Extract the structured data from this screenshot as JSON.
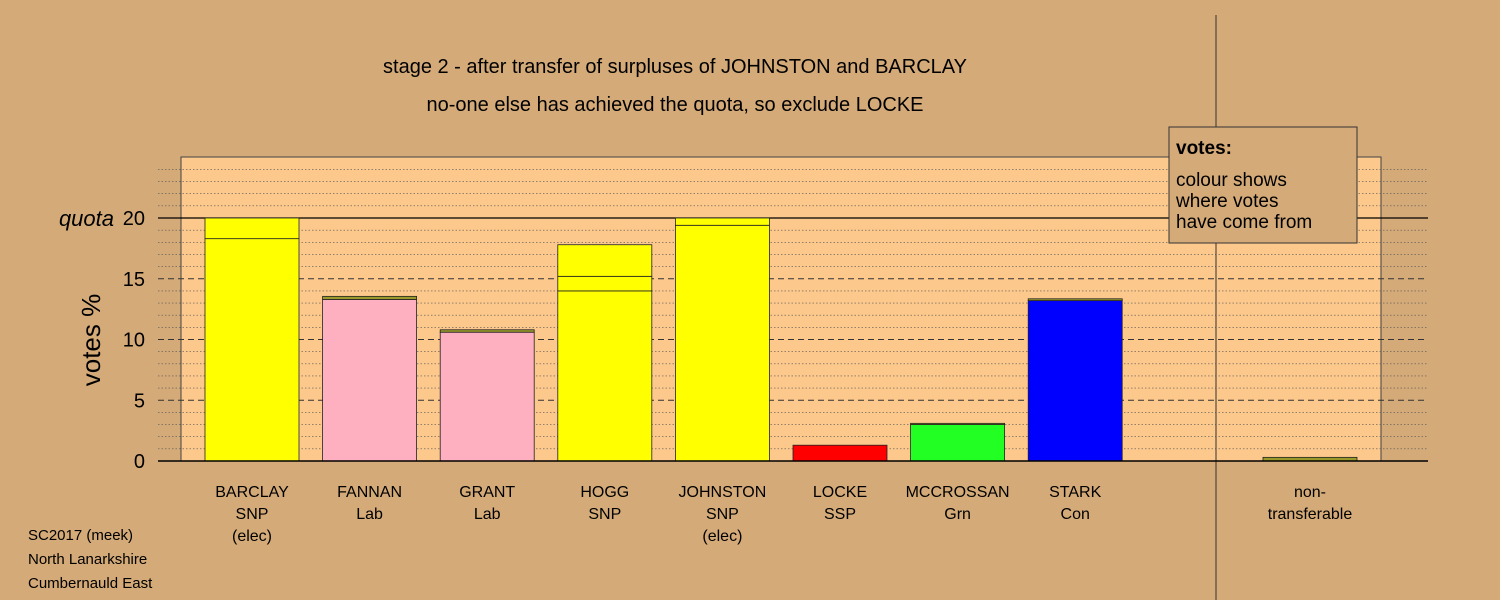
{
  "chart_data": {
    "type": "bar",
    "title_lines": [
      "stage 2 - after transfer of surpluses of JOHNSTON and BARCLAY",
      "no-one else has achieved the quota, so exclude LOCKE"
    ],
    "ylabel": "votes %",
    "ylim": [
      0,
      25
    ],
    "y_ticks": [
      0,
      5,
      10,
      15,
      20
    ],
    "quota": {
      "value": 20,
      "label": "quota"
    },
    "grid": "dotted minor every 1, dashed major every 5",
    "categories": [
      {
        "name": "BARCLAY",
        "party": "SNP",
        "note": "(elec)",
        "segments": [
          {
            "value": 18.3,
            "color": "#ffff00"
          },
          {
            "value": 1.7,
            "color": "#ffff00"
          }
        ]
      },
      {
        "name": "FANNAN",
        "party": "Lab",
        "note": "",
        "segments": [
          {
            "value": 13.3,
            "color": "#ffb0c0"
          },
          {
            "value": 0.25,
            "color": "#9a9a2a"
          }
        ]
      },
      {
        "name": "GRANT",
        "party": "Lab",
        "note": "",
        "segments": [
          {
            "value": 10.6,
            "color": "#ffb0c0"
          },
          {
            "value": 0.2,
            "color": "#9a9a2a"
          }
        ]
      },
      {
        "name": "HOGG",
        "party": "SNP",
        "note": "",
        "segments": [
          {
            "value": 14.0,
            "color": "#ffff00"
          },
          {
            "value": 1.2,
            "color": "#ffff00"
          },
          {
            "value": 2.6,
            "color": "#ffff00"
          }
        ]
      },
      {
        "name": "JOHNSTON",
        "party": "SNP",
        "note": "(elec)",
        "segments": [
          {
            "value": 19.4,
            "color": "#ffff00"
          },
          {
            "value": 0.6,
            "color": "#ffff00"
          }
        ]
      },
      {
        "name": "LOCKE",
        "party": "SSP",
        "note": "",
        "segments": [
          {
            "value": 1.3,
            "color": "#ff0000"
          }
        ]
      },
      {
        "name": "MCCROSSAN",
        "party": "Grn",
        "note": "",
        "segments": [
          {
            "value": 3.0,
            "color": "#22ff22"
          },
          {
            "value": 0.1,
            "color": "#9a9a2a"
          }
        ]
      },
      {
        "name": "STARK",
        "party": "Con",
        "note": "",
        "segments": [
          {
            "value": 13.2,
            "color": "#0000ff"
          },
          {
            "value": 0.15,
            "color": "#9a9a2a"
          }
        ]
      }
    ],
    "nontransferable": {
      "label_lines": [
        "non-",
        "transferable"
      ],
      "value": 0.3,
      "color": "#9a9a2a"
    },
    "legend": {
      "title": "votes:",
      "lines": [
        "colour shows",
        "where votes",
        "have come from"
      ],
      "placement": "top-right"
    }
  },
  "footer": [
    "SC2017 (meek)",
    "North Lanarkshire",
    "Cumbernauld East"
  ],
  "colors": {
    "background": "#d4aa78",
    "plot_background": "#fcc88c"
  }
}
